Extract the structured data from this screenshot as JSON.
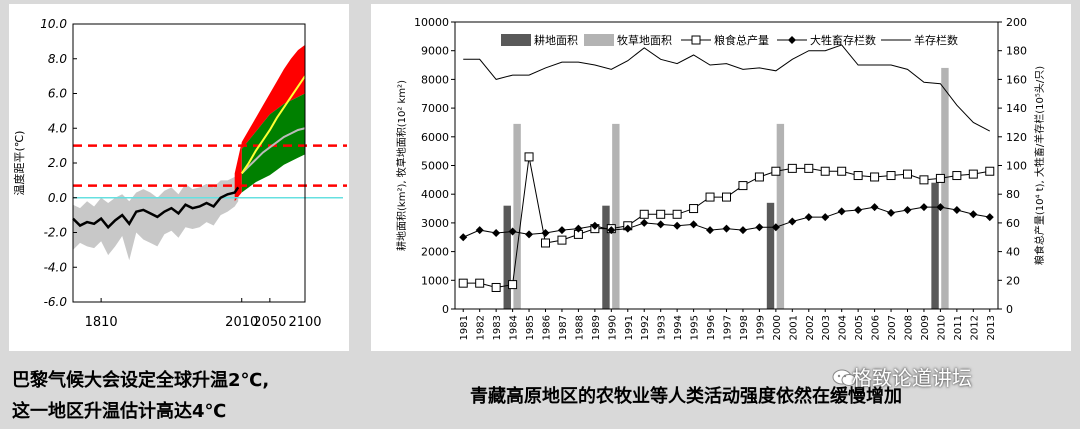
{
  "captions": {
    "left_line1": "巴黎气候大会设定全球升温2℃,",
    "left_line2": "这一地区升温估计高达4℃",
    "right": "青藏高原地区的农牧业等人类活动强度依然在缓慢增加"
  },
  "watermark": {
    "text": "格致论道讲坛",
    "icon": "wechat-icon"
  },
  "colors": {
    "high_band": "#ff0000",
    "mid_band": "#008000",
    "hist_band": "#c8c8c8",
    "mean_line": "#ffff33",
    "gray_line": "#bbbbbb",
    "threshold_line": "#ff0000",
    "zero_line": "#66e0e0",
    "cultivated": "#595959",
    "grassland": "#b3b3b3"
  },
  "chart_data": [
    {
      "type": "area",
      "ylabel": "温度距平(℃)",
      "ylim": [
        -6,
        10
      ],
      "yticks": [
        "10.0",
        "8.0",
        "6.0",
        "4.0",
        "2.0",
        "0.0",
        "-2.0",
        "-4.0",
        "-6.0"
      ],
      "xlim": [
        1770,
        2100
      ],
      "xticks": [
        "1810",
        "2010",
        "2050",
        "2100"
      ],
      "thresholds": [
        3.0,
        0.7
      ],
      "baseline": 0.0,
      "historical": {
        "x": [
          1770,
          1780,
          1790,
          1800,
          1810,
          1820,
          1830,
          1840,
          1850,
          1860,
          1870,
          1880,
          1890,
          1900,
          1910,
          1920,
          1930,
          1940,
          1950,
          1960,
          1970,
          1980,
          1990,
          2000,
          2005
        ],
        "mean": [
          -1.2,
          -1.6,
          -1.4,
          -1.5,
          -1.2,
          -1.7,
          -1.3,
          -1.0,
          -1.5,
          -0.8,
          -0.7,
          -0.9,
          -1.1,
          -0.8,
          -0.6,
          -0.9,
          -0.4,
          -0.6,
          -0.5,
          -0.3,
          -0.5,
          0.0,
          0.2,
          0.3,
          0.6
        ],
        "lower": [
          -3.0,
          -2.6,
          -2.8,
          -2.9,
          -2.5,
          -3.3,
          -2.8,
          -2.2,
          -3.6,
          -2.0,
          -2.4,
          -2.6,
          -2.8,
          -2.1,
          -1.9,
          -2.3,
          -1.7,
          -1.8,
          -1.7,
          -1.4,
          -1.6,
          -1.0,
          -0.8,
          -0.5,
          -0.2
        ],
        "upper": [
          -0.4,
          -0.6,
          -0.2,
          -0.5,
          0.0,
          -0.3,
          0.0,
          0.2,
          -0.2,
          0.3,
          0.5,
          0.3,
          0.0,
          0.4,
          0.6,
          0.2,
          0.8,
          0.5,
          0.6,
          0.8,
          0.6,
          1.0,
          1.0,
          1.2,
          1.4
        ]
      },
      "projection": {
        "x": [
          2010,
          2020,
          2030,
          2040,
          2050,
          2060,
          2070,
          2080,
          2090,
          2100
        ],
        "mean_high": [
          1.4,
          2.0,
          2.7,
          3.3,
          3.9,
          4.6,
          5.2,
          5.8,
          6.4,
          7.0
        ],
        "mean_low": [
          1.4,
          1.8,
          2.2,
          2.6,
          2.9,
          3.2,
          3.5,
          3.7,
          3.9,
          4.0
        ],
        "red_upper": [
          3.2,
          3.9,
          4.6,
          5.3,
          6.0,
          6.7,
          7.4,
          8.0,
          8.5,
          8.8
        ],
        "green_upper": [
          2.8,
          3.3,
          3.8,
          4.3,
          4.8,
          5.1,
          5.4,
          5.6,
          5.8,
          6.0
        ],
        "green_lower": [
          0.3,
          0.6,
          0.9,
          1.1,
          1.3,
          1.6,
          1.9,
          2.1,
          2.3,
          2.5
        ]
      }
    },
    {
      "type": "bar",
      "series_names": [
        "耕地面积",
        "牧草地面积",
        "粮食总产量",
        "大牲畜存栏数",
        "羊存栏数"
      ],
      "ylabel_left": "耕地面积(km²), 牧草地面积(10² km²)",
      "ylabel_right": "粮食总产量(10⁴ t), 大牲畜/羊存栏(10⁵头/只)",
      "ylim_left": [
        0,
        10000
      ],
      "ylim_right": [
        0,
        200
      ],
      "yticks_left": [
        "0",
        "1000",
        "2000",
        "3000",
        "4000",
        "5000",
        "6000",
        "7000",
        "8000",
        "9000",
        "10000"
      ],
      "yticks_right": [
        "0",
        "20",
        "40",
        "60",
        "80",
        "100",
        "120",
        "140",
        "160",
        "180",
        "200"
      ],
      "categories": [
        "1981",
        "1982",
        "1983",
        "1984",
        "1985",
        "1986",
        "1987",
        "1988",
        "1989",
        "1990",
        "1991",
        "1992",
        "1993",
        "1994",
        "1995",
        "1996",
        "1997",
        "1998",
        "1999",
        "2000",
        "2001",
        "2002",
        "2003",
        "2004",
        "2005",
        "2006",
        "2007",
        "2008",
        "2009",
        "2010",
        "2011",
        "2012",
        "2013"
      ],
      "cultivated": {
        "1984": 3600,
        "1990": 3600,
        "2000": 3700,
        "2010": 4400
      },
      "grassland": {
        "1984": 6450,
        "1990": 6450,
        "2000": 6450,
        "2010": 8400
      },
      "grain": [
        900,
        900,
        750,
        850,
        5300,
        2300,
        2400,
        2600,
        2800,
        2800,
        2900,
        3300,
        3300,
        3300,
        3500,
        3900,
        3900,
        4300,
        4600,
        4800,
        4900,
        4900,
        4800,
        4800,
        4650,
        4600,
        4650,
        4700,
        4500,
        4550,
        4650,
        4700,
        4800
      ],
      "livestock": [
        2500,
        2750,
        2650,
        2700,
        2600,
        2650,
        2750,
        2800,
        2900,
        2750,
        2800,
        3000,
        2950,
        2900,
        2950,
        2750,
        2800,
        2750,
        2850,
        2850,
        3050,
        3200,
        3200,
        3400,
        3450,
        3550,
        3350,
        3450,
        3550,
        3550,
        3450,
        3300,
        3200
      ],
      "sheep": [
        8700,
        8700,
        8000,
        8150,
        8150,
        8400,
        8600,
        8600,
        8500,
        8350,
        8650,
        9100,
        8700,
        8550,
        8850,
        8500,
        8550,
        8350,
        8400,
        8300,
        8700,
        9000,
        9000,
        9200,
        8500,
        8500,
        8500,
        8350,
        7900,
        7850,
        7100,
        6500,
        6200
      ]
    }
  ]
}
